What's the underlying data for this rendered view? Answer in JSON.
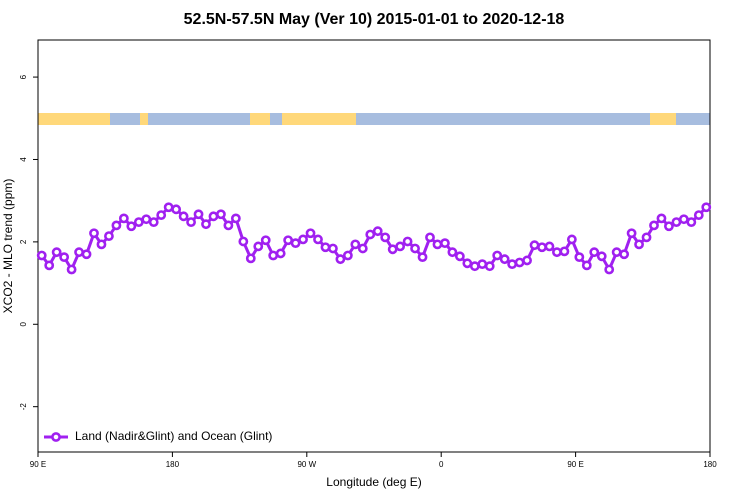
{
  "chart_data": {
    "type": "line",
    "title": "52.5N-57.5N May (Ver 10)   2015-01-01 to 2020-12-18",
    "xlabel": "Longitude (deg E)",
    "ylabel": "XCO2 - MLO trend (ppm)",
    "x": [
      92.5,
      97.5,
      102.5,
      107.5,
      112.5,
      117.5,
      122.5,
      127.5,
      132.5,
      137.5,
      142.5,
      147.5,
      152.5,
      157.5,
      162.5,
      167.5,
      172.5,
      177.5,
      182.5,
      187.5,
      192.5,
      197.5,
      202.5,
      207.5,
      212.5,
      217.5,
      222.5,
      227.5,
      232.5,
      237.5,
      242.5,
      247.5,
      252.5,
      257.5,
      262.5,
      267.5,
      272.5,
      277.5,
      282.5,
      287.5,
      292.5,
      297.5,
      302.5,
      307.5,
      312.5,
      317.5,
      322.5,
      327.5,
      332.5,
      337.5,
      342.5,
      347.5,
      352.5,
      357.5,
      362.5,
      367.5,
      372.5,
      377.5,
      382.5,
      387.5,
      392.5,
      397.5,
      402.5,
      407.5,
      412.5,
      417.5,
      422.5,
      427.5,
      432.5,
      437.5,
      442.5,
      447.5,
      452.5,
      457.5,
      462.5,
      467.5,
      472.5,
      477.5,
      482.5,
      487.5,
      492.5,
      497.5,
      502.5,
      507.5,
      512.5,
      517.5,
      522.5,
      527.5,
      532.5,
      537.5
    ],
    "series": [
      {
        "name": "Land (Nadir&Glint) and Ocean (Glint)",
        "color": "#a020f0",
        "values": [
          1.67,
          1.43,
          1.75,
          1.63,
          1.33,
          1.75,
          1.7,
          2.21,
          1.94,
          2.14,
          2.4,
          2.57,
          2.38,
          2.48,
          2.55,
          2.48,
          2.65,
          2.84,
          2.79,
          2.62,
          2.48,
          2.67,
          2.43,
          2.62,
          2.67,
          2.4,
          2.57,
          2.01,
          1.6,
          1.89,
          2.04,
          1.67,
          1.72,
          2.04,
          1.97,
          2.06,
          2.21,
          2.06,
          1.87,
          1.84,
          1.58,
          1.67,
          1.94,
          1.84,
          2.18,
          2.26,
          2.11,
          1.82,
          1.89,
          2.01,
          1.84,
          1.63,
          2.11,
          1.94,
          1.97,
          1.75,
          1.65,
          1.48,
          1.41,
          1.46,
          1.41,
          1.67,
          1.58,
          1.46,
          1.5,
          1.55,
          1.92,
          1.87,
          1.89,
          1.75,
          1.77,
          2.06,
          1.63,
          1.43,
          1.75,
          1.65,
          1.33,
          1.75,
          1.7,
          2.21,
          1.94,
          2.11,
          2.4,
          2.57,
          2.38,
          2.48,
          2.55,
          2.48,
          2.65,
          2.84
        ]
      }
    ],
    "xlim": [
      90,
      540
    ],
    "xticks": [
      {
        "value": 90,
        "label": "90 E"
      },
      180,
      {
        "value": 270,
        "label": "90 W"
      },
      {
        "value": 360,
        "label": "0"
      },
      {
        "value": 450,
        "label": "90 E"
      },
      {
        "value": 540,
        "label": "180"
      }
    ],
    "ylim": [
      -3.1,
      6.9
    ],
    "yticks": [
      -2,
      0,
      2,
      4,
      6
    ],
    "legend": "bottom-left"
  }
}
